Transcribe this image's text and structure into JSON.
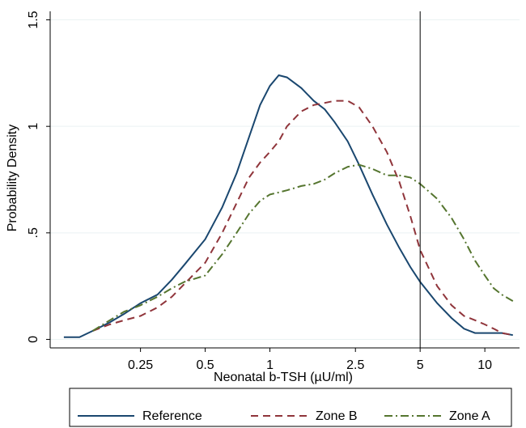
{
  "chart_data": {
    "type": "line",
    "x_label": "Neonatal b-TSH (µU/ml)",
    "y_label": "Probability Density",
    "xscale": "log",
    "xlim": [
      0.095,
      14.5
    ],
    "ylim": [
      -0.04,
      1.54
    ],
    "xticks": [
      0.25,
      0.5,
      1,
      2.5,
      5,
      10
    ],
    "yticks": [
      0,
      {
        "value": 0.5,
        "label": ".5"
      },
      1,
      1.5
    ],
    "grid": true,
    "xline": 5,
    "legend": "bottom",
    "x": [
      0.11,
      0.13,
      0.15,
      0.18,
      0.21,
      0.25,
      0.3,
      0.35,
      0.4,
      0.5,
      0.6,
      0.7,
      0.8,
      0.9,
      1,
      1.1,
      1.2,
      1.4,
      1.6,
      1.8,
      2,
      2.3,
      2.6,
      3,
      3.5,
      4,
      4.5,
      5,
      6,
      7,
      8,
      9,
      10,
      11,
      12,
      13.5
    ],
    "series": [
      {
        "name": "Reference",
        "color": "#1a476f",
        "dash": "none",
        "values": [
          0.01,
          0.01,
          0.04,
          0.08,
          0.12,
          0.17,
          0.21,
          0.28,
          0.35,
          0.47,
          0.62,
          0.78,
          0.95,
          1.1,
          1.19,
          1.24,
          1.23,
          1.18,
          1.12,
          1.08,
          1.02,
          0.93,
          0.82,
          0.68,
          0.54,
          0.43,
          0.34,
          0.27,
          0.17,
          0.1,
          0.05,
          0.03,
          0.03,
          0.03,
          0.03,
          0.02
        ]
      },
      {
        "name": "Zone B",
        "color": "#90353b",
        "dash": "9,6",
        "values": [
          null,
          null,
          0.04,
          0.07,
          0.09,
          0.11,
          0.15,
          0.2,
          0.26,
          0.36,
          0.5,
          0.64,
          0.76,
          0.83,
          0.88,
          0.93,
          1.0,
          1.07,
          1.1,
          1.11,
          1.12,
          1.12,
          1.09,
          1.0,
          0.88,
          0.74,
          0.58,
          0.42,
          0.25,
          0.16,
          0.11,
          0.09,
          0.07,
          0.05,
          0.03,
          0.02
        ]
      },
      {
        "name": "Zone A",
        "color": "#55752f",
        "dash": "10,4,2,4",
        "values": [
          null,
          null,
          0.04,
          0.09,
          0.13,
          0.16,
          0.2,
          0.24,
          0.27,
          0.3,
          0.4,
          0.5,
          0.59,
          0.65,
          0.68,
          0.69,
          0.7,
          0.72,
          0.73,
          0.75,
          0.78,
          0.81,
          0.82,
          0.8,
          0.77,
          0.77,
          0.76,
          0.73,
          0.66,
          0.57,
          0.47,
          0.37,
          0.3,
          0.24,
          0.21,
          0.18
        ]
      }
    ]
  }
}
